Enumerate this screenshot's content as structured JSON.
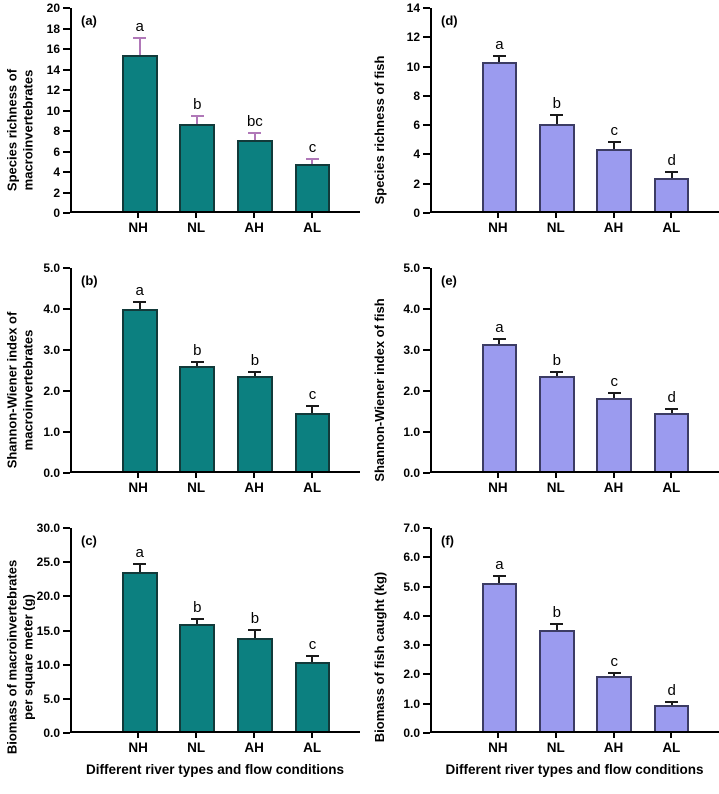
{
  "figure": {
    "background": "#ffffff",
    "columns": 2,
    "rows": 3,
    "axis_color": "#000000"
  },
  "chart_data": [
    {
      "type": "bar",
      "panel_label": "(a)",
      "ylabel_lines": [
        "Species richness of",
        "macroinvertebrates"
      ],
      "categories": [
        "NH",
        "NL",
        "AH",
        "AL"
      ],
      "values": [
        15.4,
        8.6,
        7.0,
        4.6
      ],
      "errors": [
        1.5,
        0.7,
        0.6,
        0.4
      ],
      "sig_letters": [
        "a",
        "b",
        "bc",
        "c"
      ],
      "ylim": [
        0,
        20
      ],
      "ytick_step": 2,
      "ytick_decimals": 0,
      "bar_color": "#0c8080",
      "bar_border_color": "#123a3a",
      "error_color": "#b078b8",
      "x_title": ""
    },
    {
      "type": "bar",
      "panel_label": "(b)",
      "ylabel_lines": [
        "Shannon-Wiener index of",
        "macroinvertebrates"
      ],
      "categories": [
        "NH",
        "NL",
        "AH",
        "AL"
      ],
      "values": [
        4.0,
        2.58,
        2.34,
        1.43
      ],
      "errors": [
        0.15,
        0.07,
        0.07,
        0.15
      ],
      "sig_letters": [
        "a",
        "b",
        "b",
        "c"
      ],
      "ylim": [
        0,
        5
      ],
      "ytick_step": 1,
      "ytick_decimals": 1,
      "bar_color": "#0c8080",
      "bar_border_color": "#123a3a",
      "error_color": "#1a1a1a",
      "x_title": ""
    },
    {
      "type": "bar",
      "panel_label": "(c)",
      "ylabel_lines": [
        "Biomass of macroinvertebrates",
        "per square meter (g)"
      ],
      "categories": [
        "NH",
        "NL",
        "AH",
        "AL"
      ],
      "values": [
        23.5,
        15.8,
        13.8,
        10.2
      ],
      "errors": [
        1.0,
        0.6,
        1.0,
        0.8
      ],
      "sig_letters": [
        "a",
        "b",
        "b",
        "c"
      ],
      "ylim": [
        0,
        30
      ],
      "ytick_step": 5,
      "ytick_decimals": 1,
      "bar_color": "#0c8080",
      "bar_border_color": "#123a3a",
      "error_color": "#1a1a1a",
      "x_title": "Different river types and flow conditions"
    },
    {
      "type": "bar",
      "panel_label": "(d)",
      "ylabel_lines": [
        "Species richness of fish"
      ],
      "categories": [
        "NH",
        "NL",
        "AH",
        "AL"
      ],
      "values": [
        10.3,
        6.0,
        4.3,
        2.3
      ],
      "errors": [
        0.35,
        0.55,
        0.4,
        0.35
      ],
      "sig_letters": [
        "a",
        "b",
        "c",
        "d"
      ],
      "ylim": [
        0,
        14
      ],
      "ytick_step": 2,
      "ytick_decimals": 0,
      "bar_color": "#9b9bef",
      "bar_border_color": "#3c3c64",
      "error_color": "#1a1a1a",
      "x_title": ""
    },
    {
      "type": "bar",
      "panel_label": "(e)",
      "ylabel_lines": [
        "Shannon-Wiener index of fish"
      ],
      "categories": [
        "NH",
        "NL",
        "AH",
        "AL"
      ],
      "values": [
        3.12,
        2.33,
        1.79,
        1.43
      ],
      "errors": [
        0.1,
        0.08,
        0.1,
        0.07
      ],
      "sig_letters": [
        "a",
        "b",
        "c",
        "d"
      ],
      "ylim": [
        0,
        5
      ],
      "ytick_step": 1,
      "ytick_decimals": 1,
      "bar_color": "#9b9bef",
      "bar_border_color": "#3c3c64",
      "error_color": "#1a1a1a",
      "x_title": ""
    },
    {
      "type": "bar",
      "panel_label": "(f)",
      "ylabel_lines": [
        "Biomass of fish caught (kg)"
      ],
      "categories": [
        "NH",
        "NL",
        "AH",
        "AL"
      ],
      "values": [
        5.1,
        3.5,
        1.9,
        0.9
      ],
      "errors": [
        0.2,
        0.15,
        0.08,
        0.05
      ],
      "sig_letters": [
        "a",
        "b",
        "c",
        "d"
      ],
      "ylim": [
        0,
        7
      ],
      "ytick_step": 1,
      "ytick_decimals": 1,
      "bar_color": "#9b9bef",
      "bar_border_color": "#3c3c64",
      "error_color": "#1a1a1a",
      "x_title": "Different river types and flow conditions"
    }
  ]
}
